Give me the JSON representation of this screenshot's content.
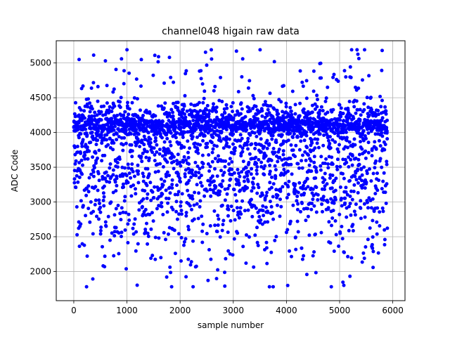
{
  "chart_data": {
    "type": "scatter",
    "title": "channel048 higain raw data",
    "xlabel": "sample number",
    "ylabel": "ADC Code",
    "xlim": [
      -330,
      6230
    ],
    "ylim": [
      1580,
      5320
    ],
    "xticks": [
      0,
      1000,
      2000,
      3000,
      4000,
      5000,
      6000
    ],
    "yticks": [
      2000,
      2500,
      3000,
      3500,
      4000,
      4500,
      5000
    ],
    "grid": true,
    "marker_color": "#0000ff",
    "n_samples": 5900,
    "series": [
      {
        "values_description": "one ADC reading per sample number 0..5899",
        "distribution": [
          {
            "y_center": 4100,
            "spread": 70,
            "weight": 0.3
          },
          {
            "y_center": 4250,
            "spread": 120,
            "weight": 0.15
          },
          {
            "y_center": 3900,
            "spread": 120,
            "weight": 0.1
          },
          {
            "y_center": 3450,
            "spread": 300,
            "weight": 0.25
          },
          {
            "y_center": 3000,
            "spread": 350,
            "weight": 0.12
          },
          {
            "y_center": 2400,
            "spread": 350,
            "weight": 0.05
          },
          {
            "y_center": 4750,
            "spread": 250,
            "weight": 0.03
          }
        ],
        "y_min_observed": 1780,
        "y_max_observed": 5190
      }
    ],
    "notable_points": [
      {
        "x": 100,
        "y": 5050
      },
      {
        "x": 1800,
        "y": 5080
      },
      {
        "x": 3060,
        "y": 5170
      },
      {
        "x": 5470,
        "y": 5190
      },
      {
        "x": 5800,
        "y": 5180
      },
      {
        "x": 240,
        "y": 1780
      },
      {
        "x": 1840,
        "y": 1780
      },
      {
        "x": 3680,
        "y": 1780
      },
      {
        "x": 5080,
        "y": 1800
      }
    ]
  }
}
